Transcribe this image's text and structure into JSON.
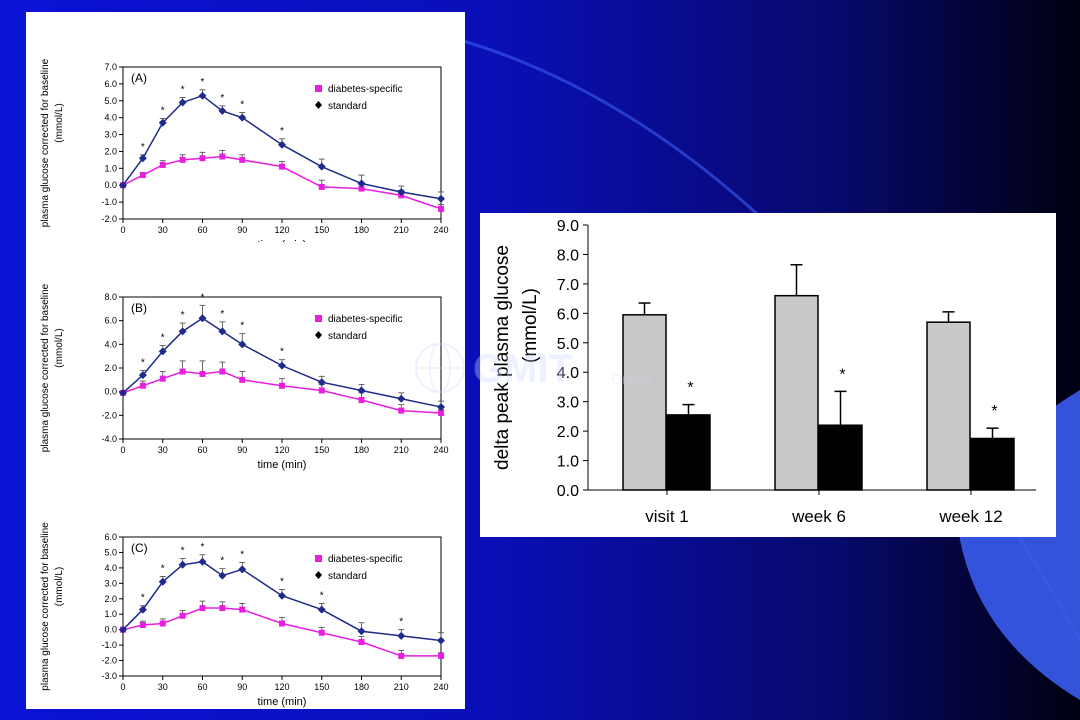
{
  "watermark": {
    "text": "GMIT",
    "sub": "Online"
  },
  "colors": {
    "diabetes_specific": "#e81ee0",
    "standard": "#1f2b8a",
    "gray_bar": "#c8c8c8",
    "black_bar": "#000000"
  },
  "chart_data": [
    {
      "type": "line",
      "panel_label": "(A)",
      "ylabel_lines": [
        "plasma glucose corrected for baseline",
        "(mmol/L)"
      ],
      "xlabel": "time (min)",
      "xlim": [
        0,
        240
      ],
      "ylim": [
        -2.0,
        7.0
      ],
      "x_ticks": [
        0,
        30,
        60,
        90,
        120,
        150,
        180,
        210,
        240
      ],
      "y_ticks": [
        "-2.0",
        "-1.0",
        "0.0",
        "1.0",
        "2.0",
        "3.0",
        "4.0",
        "5.0",
        "6.0",
        "7.0"
      ],
      "x": [
        0,
        15,
        30,
        45,
        60,
        75,
        90,
        120,
        150,
        180,
        210,
        240
      ],
      "series": [
        {
          "name": "diabetes-specific",
          "values": [
            0.0,
            0.6,
            1.2,
            1.5,
            1.6,
            1.7,
            1.5,
            1.1,
            -0.1,
            -0.2,
            -0.6,
            -1.4
          ],
          "errors": [
            0,
            0.15,
            0.25,
            0.3,
            0.35,
            0.35,
            0.3,
            0.3,
            0.4,
            0.35,
            0.3,
            0.25
          ]
        },
        {
          "name": "standard",
          "values": [
            0.0,
            1.6,
            3.7,
            4.9,
            5.3,
            4.4,
            4.0,
            2.4,
            1.1,
            0.1,
            -0.4,
            -0.8
          ],
          "errors": [
            0,
            0.2,
            0.25,
            0.3,
            0.35,
            0.3,
            0.3,
            0.35,
            0.45,
            0.5,
            0.35,
            0.4
          ]
        }
      ],
      "stars": [
        15,
        30,
        45,
        60,
        75,
        90,
        120
      ]
    },
    {
      "type": "line",
      "panel_label": "(B)",
      "ylabel_lines": [
        "plasma glucose corrected for baseline",
        "(mmol/L)"
      ],
      "xlabel": "time (min)",
      "xlim": [
        0,
        240
      ],
      "ylim": [
        -4.0,
        8.0
      ],
      "x_ticks": [
        0,
        30,
        60,
        90,
        120,
        150,
        180,
        210,
        240
      ],
      "y_ticks": [
        "-4.0",
        "-2.0",
        "0.0",
        "2.0",
        "4.0",
        "6.0",
        "8.0"
      ],
      "x": [
        0,
        15,
        30,
        45,
        60,
        75,
        90,
        120,
        150,
        180,
        210,
        240
      ],
      "series": [
        {
          "name": "diabetes-specific",
          "values": [
            -0.1,
            0.5,
            1.1,
            1.7,
            1.5,
            1.7,
            1.0,
            0.5,
            0.1,
            -0.7,
            -1.6,
            -1.8
          ],
          "errors": [
            0,
            0.4,
            0.6,
            0.9,
            1.1,
            0.8,
            0.7,
            0.6,
            0.5,
            0.6,
            0.5,
            0.3
          ]
        },
        {
          "name": "standard",
          "values": [
            -0.1,
            1.4,
            3.4,
            5.1,
            6.2,
            5.1,
            4.0,
            2.2,
            0.8,
            0.1,
            -0.6,
            -1.3
          ],
          "errors": [
            0,
            0.4,
            0.5,
            0.7,
            1.1,
            0.8,
            0.9,
            0.5,
            0.5,
            0.5,
            0.5,
            0.5
          ]
        }
      ],
      "stars": [
        15,
        30,
        45,
        60,
        75,
        90,
        120
      ]
    },
    {
      "type": "line",
      "panel_label": "(C)",
      "ylabel_lines": [
        "plasma glucose corrected for baseline",
        "(mmol/L)"
      ],
      "xlabel": "time (min)",
      "xlim": [
        0,
        240
      ],
      "ylim": [
        -3.0,
        6.0
      ],
      "x_ticks": [
        0,
        30,
        60,
        90,
        120,
        150,
        180,
        210,
        240
      ],
      "y_ticks": [
        "-3.0",
        "-2.0",
        "-1.0",
        "0.0",
        "1.0",
        "2.0",
        "3.0",
        "4.0",
        "5.0",
        "6.0"
      ],
      "x": [
        0,
        15,
        30,
        45,
        60,
        75,
        90,
        120,
        150,
        180,
        210,
        240
      ],
      "series": [
        {
          "name": "diabetes-specific",
          "values": [
            0.0,
            0.3,
            0.4,
            0.9,
            1.4,
            1.4,
            1.3,
            0.4,
            -0.2,
            -0.8,
            -1.7,
            -1.7
          ],
          "errors": [
            0,
            0.25,
            0.3,
            0.35,
            0.45,
            0.4,
            0.4,
            0.4,
            0.35,
            0.35,
            0.35,
            0.2
          ]
        },
        {
          "name": "standard",
          "values": [
            0.0,
            1.3,
            3.1,
            4.2,
            4.4,
            3.5,
            3.9,
            2.2,
            1.3,
            -0.1,
            -0.4,
            -0.7
          ],
          "errors": [
            0,
            0.25,
            0.35,
            0.4,
            0.45,
            0.45,
            0.45,
            0.4,
            0.4,
            0.55,
            0.4,
            0.5
          ]
        }
      ],
      "stars": [
        15,
        30,
        45,
        60,
        75,
        90,
        120,
        150,
        210
      ]
    },
    {
      "type": "bar",
      "ylabel_lines": [
        "delta peak plasma glucose",
        "(mmol/L)"
      ],
      "ylim": [
        0.0,
        9.0
      ],
      "y_ticks": [
        "0.0",
        "1.0",
        "2.0",
        "3.0",
        "4.0",
        "5.0",
        "6.0",
        "7.0",
        "8.0",
        "9.0"
      ],
      "categories": [
        "visit 1",
        "week 6",
        "week 12"
      ],
      "series": [
        {
          "values": [
            5.95,
            6.6,
            5.7
          ],
          "errors": [
            0.4,
            1.05,
            0.35
          ]
        },
        {
          "values": [
            2.55,
            2.2,
            1.75
          ],
          "errors": [
            0.35,
            1.15,
            0.35
          ]
        }
      ],
      "stars": [
        "visit 1",
        "week 6",
        "week 12"
      ]
    }
  ]
}
